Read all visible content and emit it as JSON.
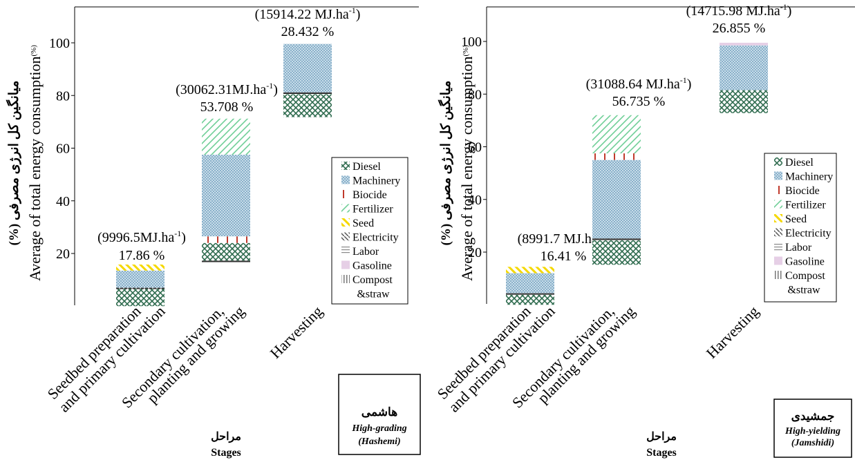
{
  "chart_data": [
    {
      "type": "waterfall-stacked-bar",
      "ylabel_fa": "میانگین کل انرژی مصرفی (%)",
      "ylabel_en": "Average of total energy consumption",
      "ylabel_unit": "(%)",
      "yticks": [
        "20",
        "40",
        "60",
        "80",
        "100"
      ],
      "ylim": [
        0,
        115
      ],
      "xlabel_fa": "مراحل",
      "xlabel_en": "Stages",
      "categories": [
        "Seedbed preparation and primary cultivation",
        "Secondary cultivation, planting and growing",
        "Harvesting"
      ],
      "category_lines": [
        [
          "Seedbed preparation",
          "and primary cultivation"
        ],
        [
          "Secondary cultivation,",
          "planting and growing"
        ],
        [
          "Harvesting"
        ]
      ],
      "bars": [
        {
          "label_energy": "(9996.5MJ.ha",
          "label_energy_close": ")",
          "label_percent": "17.86 %",
          "segments": [
            {
              "input": "Diesel",
              "from": 0,
              "to": 6.5
            },
            {
              "input": "Labor",
              "from": 6.5,
              "to": 7.0
            },
            {
              "input": "Machinery",
              "from": 7.0,
              "to": 13.5
            },
            {
              "input": "Seed",
              "from": 13.5,
              "to": 15.8
            }
          ]
        },
        {
          "label_energy": "(30062.31MJ.ha",
          "label_energy_close": ")",
          "label_percent": "53.708 %",
          "segments": [
            {
              "input": "Labor",
              "from": 16.7,
              "to": 17.3
            },
            {
              "input": "Diesel",
              "from": 17.3,
              "to": 24.0
            },
            {
              "input": "Biocide",
              "from": 24.0,
              "to": 26.5
            },
            {
              "input": "Machinery",
              "from": 26.5,
              "to": 57.5
            },
            {
              "input": "Fertilizer",
              "from": 57.5,
              "to": 71.2
            }
          ]
        },
        {
          "label_energy": "(15914.22 MJ.ha",
          "label_energy_close": ")",
          "label_percent": "28.432 %",
          "segments": [
            {
              "input": "Diesel",
              "from": 71.8,
              "to": 80.5
            },
            {
              "input": "Labor",
              "from": 80.5,
              "to": 81.2
            },
            {
              "input": "Machinery",
              "from": 81.2,
              "to": 99.6
            }
          ]
        }
      ],
      "legend_position": "right",
      "variety_fa": "هاشمی",
      "variety_en": "High-grading",
      "variety_name": "(Hashemi)"
    },
    {
      "type": "waterfall-stacked-bar",
      "ylabel_fa": "میانگین کل انرژی مصرفی (%)",
      "ylabel_en": "Average of total energy consumption",
      "ylabel_unit": "(%)",
      "yticks": [
        "20",
        "40",
        "60",
        "80",
        "100"
      ],
      "ylim": [
        0,
        115
      ],
      "xlabel_fa": "مراحل",
      "xlabel_en": "Stages",
      "categories": [
        "Seedbed preparation and primary cultivation",
        "Secondary cultivation, planting and growing",
        "Harvesting"
      ],
      "category_lines": [
        [
          "Seedbed preparation",
          "and primary cultivation"
        ],
        [
          "Secondary cultivation,",
          "planting and growing"
        ],
        [
          "Harvesting"
        ]
      ],
      "bars": [
        {
          "label_energy": "(8991.7 MJ.ha",
          "label_energy_close": ")",
          "label_percent": "16.41 %",
          "segments": [
            {
              "input": "Diesel",
              "from": 0,
              "to": 3.8
            },
            {
              "input": "Labor",
              "from": 3.8,
              "to": 4.4
            },
            {
              "input": "Machinery",
              "from": 4.4,
              "to": 12.0
            },
            {
              "input": "Seed",
              "from": 12.0,
              "to": 14.4
            }
          ]
        },
        {
          "label_energy": "(31088.64 MJ.ha",
          "label_energy_close": ")",
          "label_percent": "56.735 %",
          "segments": [
            {
              "input": "Diesel",
              "from": 15.2,
              "to": 24.5
            },
            {
              "input": "Labor",
              "from": 24.5,
              "to": 25.2
            },
            {
              "input": "Machinery",
              "from": 25.2,
              "to": 55.0
            },
            {
              "input": "Biocide",
              "from": 55.0,
              "to": 57.5
            },
            {
              "input": "Fertilizer",
              "from": 57.5,
              "to": 72.0
            }
          ]
        },
        {
          "label_energy": "(14715.98 MJ.ha",
          "label_energy_close": ")",
          "label_percent": "26.855 %",
          "segments": [
            {
              "input": "Diesel",
              "from": 72.8,
              "to": 81.5
            },
            {
              "input": "Machinery",
              "from": 81.5,
              "to": 98.5
            },
            {
              "input": "Gasoline",
              "from": 98.5,
              "to": 99.5
            }
          ]
        }
      ],
      "legend_position": "right",
      "variety_fa": "جمشیدی",
      "variety_en": "High-yielding",
      "variety_name": "(Jamshidi)"
    }
  ],
  "legend": {
    "items": [
      "Diesel",
      "Machinery",
      "Biocide",
      "Fertilizer",
      "Seed",
      "Electricity",
      "Labor",
      "Gasoline",
      "Compost"
    ],
    "last_line": "&straw"
  },
  "superscript": "-1",
  "colors": {
    "Diesel": "#2e6b4e",
    "Machinery": "#5b8fb5",
    "Machinery_bg": "#c9dde9",
    "Biocide": "#c0392b",
    "Fertilizer": "#6fcf97",
    "Seed": "#f5d800",
    "Electricity": "#555555",
    "Labor": "#888888",
    "Gasoline": "#e6cfe6",
    "Compost": "#777777"
  }
}
